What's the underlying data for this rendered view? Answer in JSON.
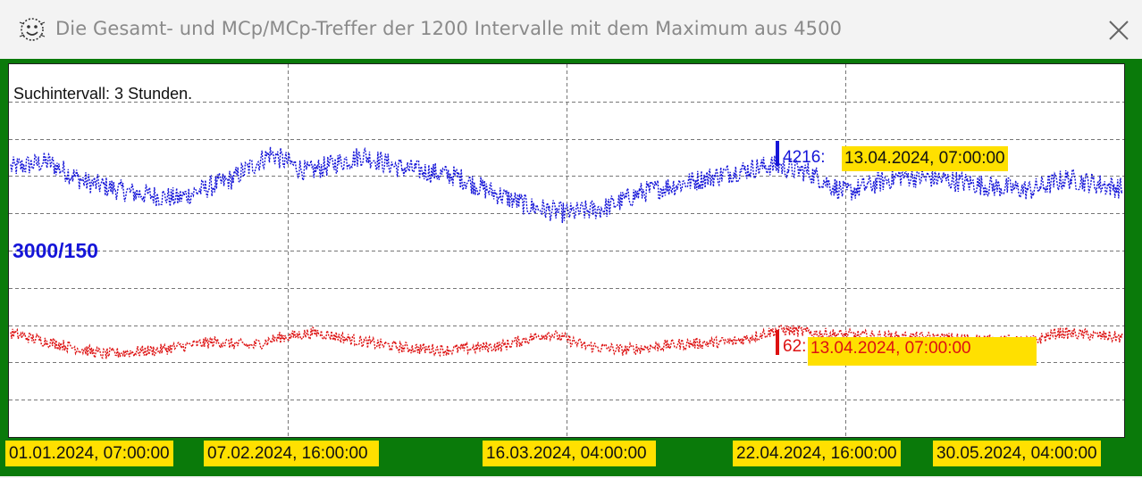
{
  "window": {
    "title": "Die Gesamt- und MCp/MCp-Treffer der 1200 Intervalle mit dem Maximum aus 4500",
    "icon": "dotted-smiley-icon",
    "close_icon": "close-icon"
  },
  "colors": {
    "frame": "#0a7a0a",
    "total_series": "#1515d8",
    "mcp_series": "#dd1111",
    "highlight": "#ffe000"
  },
  "chart_data": {
    "type": "line",
    "title": "Die Gesamt- und MCp/MCp-Treffer der 1200 Intervalle mit dem Maximum aus 4500",
    "interval_label": "Suchintervall: 3 Stunden.",
    "scale_label": "3000/150",
    "x_tick_labels": [
      "01.01.2024, 07:00:00",
      "07.02.2024, 16:00:00",
      "16.03.2024, 04:00:00",
      "22.04.2024, 16:00:00",
      "30.05.2024, 04:00:00"
    ],
    "grid": true,
    "ylim": [
      0,
      4500
    ],
    "interval_count": 1200,
    "series": [
      {
        "id": "total",
        "color": "#1515d8",
        "max_value": "4216",
        "max_label": "4216:",
        "max_date": "13.04.2024, 07:00:00",
        "max_index": 830,
        "anchors": [
          [
            0,
            3250
          ],
          [
            40,
            3320
          ],
          [
            80,
            3080
          ],
          [
            130,
            2950
          ],
          [
            180,
            2880
          ],
          [
            240,
            3120
          ],
          [
            280,
            3420
          ],
          [
            320,
            3200
          ],
          [
            380,
            3400
          ],
          [
            420,
            3250
          ],
          [
            480,
            3150
          ],
          [
            510,
            3000
          ],
          [
            560,
            2780
          ],
          [
            600,
            2700
          ],
          [
            640,
            2760
          ],
          [
            680,
            2950
          ],
          [
            720,
            3050
          ],
          [
            780,
            3200
          ],
          [
            820,
            3280
          ],
          [
            860,
            3200
          ],
          [
            900,
            2950
          ],
          [
            960,
            3150
          ],
          [
            1000,
            3120
          ],
          [
            1060,
            3020
          ],
          [
            1100,
            2980
          ],
          [
            1140,
            3120
          ],
          [
            1199,
            3000
          ]
        ]
      },
      {
        "id": "mcp",
        "color": "#dd1111",
        "max_value": "62",
        "max_label": "62:",
        "max_date": "13.04.2024, 07:00:00",
        "max_index": 830,
        "anchors": [
          [
            0,
            1250
          ],
          [
            40,
            1150
          ],
          [
            100,
            1000
          ],
          [
            160,
            1050
          ],
          [
            220,
            1150
          ],
          [
            260,
            1100
          ],
          [
            290,
            1200
          ],
          [
            330,
            1260
          ],
          [
            380,
            1150
          ],
          [
            420,
            1080
          ],
          [
            470,
            1050
          ],
          [
            530,
            1100
          ],
          [
            580,
            1250
          ],
          [
            620,
            1100
          ],
          [
            660,
            1050
          ],
          [
            720,
            1120
          ],
          [
            780,
            1150
          ],
          [
            830,
            1300
          ],
          [
            870,
            1250
          ],
          [
            920,
            1220
          ],
          [
            980,
            1200
          ],
          [
            1040,
            1180
          ],
          [
            1100,
            1150
          ],
          [
            1130,
            1260
          ],
          [
            1199,
            1200
          ]
        ]
      }
    ]
  }
}
